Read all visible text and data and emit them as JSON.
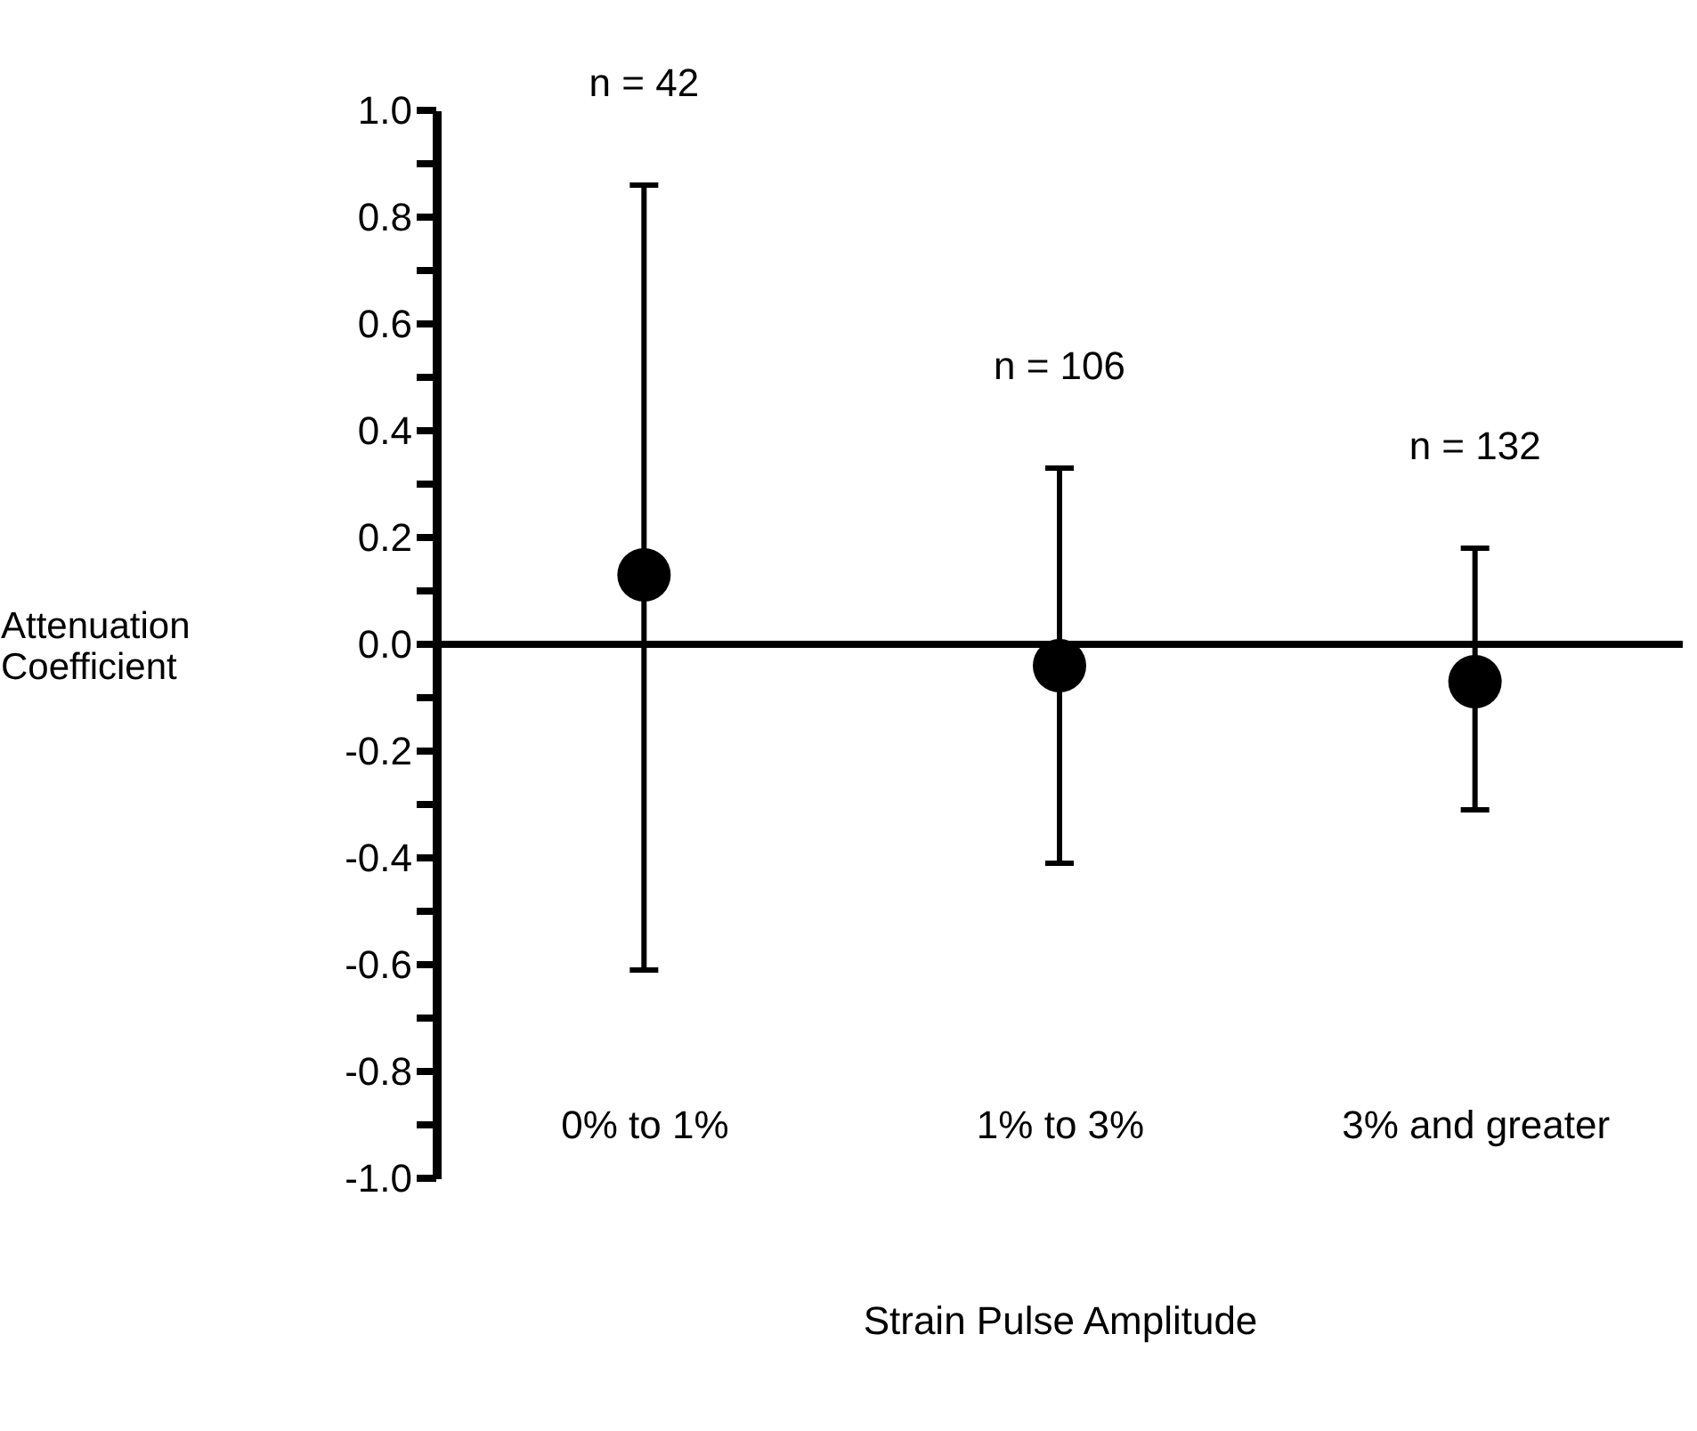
{
  "chart_data": {
    "type": "scatter",
    "xlabel": "Strain Pulse Amplitude",
    "ylabel": "Attenuation Coefficient",
    "categories": [
      "0% to 1%",
      "1% to 3%",
      "3% and greater"
    ],
    "values": [
      0.13,
      -0.04,
      -0.07
    ],
    "errors": [
      [
        -0.61,
        0.86
      ],
      [
        -0.41,
        0.33
      ],
      [
        -0.31,
        0.18
      ]
    ],
    "color": "#000000",
    "marker": "circle",
    "ylim": [
      -1.0,
      1.0
    ],
    "yticks": [
      {
        "value": -1.0,
        "label": "-1.0"
      },
      {
        "value": -0.9,
        "label": null
      },
      -0.8,
      {
        "value": -0.7,
        "label": null
      },
      -0.6,
      {
        "value": -0.5,
        "label": null
      },
      -0.4,
      {
        "value": -0.3,
        "label": null
      },
      -0.2,
      {
        "value": -0.1,
        "label": null
      },
      {
        "value": 0,
        "label": "0.0"
      },
      {
        "value": 0.1,
        "label": null
      },
      0.2,
      {
        "value": 0.3,
        "label": null
      },
      0.4,
      {
        "value": 0.5,
        "label": null
      },
      0.6,
      {
        "value": 0.7,
        "label": null
      },
      0.8,
      {
        "value": 0.9,
        "label": null
      },
      {
        "value": 1.0,
        "label": "1.0"
      }
    ],
    "ref_lines": [
      {
        "axis": "y",
        "value": 0,
        "color": "#000000"
      }
    ],
    "annotations": [
      "n = 42",
      "n = 106",
      "n = 132"
    ],
    "grid": false
  }
}
